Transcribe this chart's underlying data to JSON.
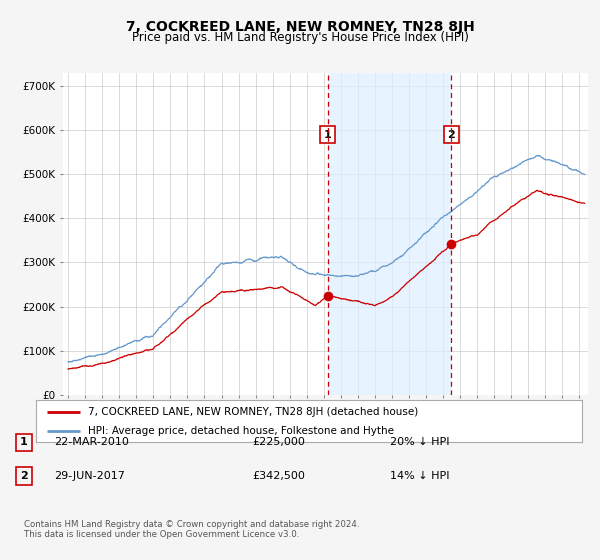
{
  "title": "7, COCKREED LANE, NEW ROMNEY, TN28 8JH",
  "subtitle": "Price paid vs. HM Land Registry's House Price Index (HPI)",
  "title_fontsize": 10,
  "subtitle_fontsize": 8.5,
  "ylabel_ticks": [
    "£0",
    "£100K",
    "£200K",
    "£300K",
    "£400K",
    "£500K",
    "£600K",
    "£700K"
  ],
  "ytick_vals": [
    0,
    100000,
    200000,
    300000,
    400000,
    500000,
    600000,
    700000
  ],
  "ylim": [
    0,
    730000
  ],
  "xlim_start": 1994.7,
  "xlim_end": 2025.5,
  "purchase1_x": 2010.22,
  "purchase1_y": 225000,
  "purchase1_label": "1",
  "purchase2_x": 2017.49,
  "purchase2_y": 342500,
  "purchase2_label": "2",
  "vline1_x": 2010.22,
  "vline2_x": 2017.49,
  "legend_line1": "7, COCKREED LANE, NEW ROMNEY, TN28 8JH (detached house)",
  "legend_line2": "HPI: Average price, detached house, Folkestone and Hythe",
  "table_row1_num": "1",
  "table_row1_date": "22-MAR-2010",
  "table_row1_price": "£225,000",
  "table_row1_hpi": "20% ↓ HPI",
  "table_row2_num": "2",
  "table_row2_date": "29-JUN-2017",
  "table_row2_price": "£342,500",
  "table_row2_hpi": "14% ↓ HPI",
  "footer": "Contains HM Land Registry data © Crown copyright and database right 2024.\nThis data is licensed under the Open Government Licence v3.0.",
  "line_color_red": "#cc0000",
  "line_color_blue": "#6699cc",
  "shade_color": "#ddeeff",
  "bg_color": "#f5f5f5",
  "plot_bg": "#ffffff",
  "grid_color": "#cccccc",
  "vline_color": "#cc0000"
}
